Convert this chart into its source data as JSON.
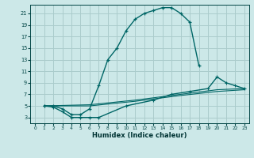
{
  "xlabel": "Humidex (Indice chaleur)",
  "bg_color": "#cce8e8",
  "grid_color": "#aacccc",
  "line_color": "#006666",
  "xlim": [
    -0.5,
    23.5
  ],
  "ylim": [
    2,
    22.5
  ],
  "xticks": [
    0,
    1,
    2,
    3,
    4,
    5,
    6,
    7,
    8,
    9,
    10,
    11,
    12,
    13,
    14,
    15,
    16,
    17,
    18,
    19,
    20,
    21,
    22,
    23
  ],
  "yticks": [
    3,
    5,
    7,
    9,
    11,
    13,
    15,
    17,
    19,
    21
  ],
  "line1_x": [
    1,
    2,
    3,
    4,
    5,
    6,
    7,
    8,
    9,
    10,
    11,
    12,
    13,
    14,
    15,
    16,
    17,
    18
  ],
  "line1_y": [
    5,
    5,
    4.5,
    3.5,
    3.5,
    4.5,
    8.5,
    13,
    15,
    18,
    20,
    21,
    21.5,
    22,
    22,
    21,
    19.5,
    12
  ],
  "line2_x": [
    1,
    2,
    3,
    4,
    5,
    6,
    7,
    10,
    13,
    15,
    17,
    19,
    20,
    21,
    22,
    23
  ],
  "line2_y": [
    5,
    4.8,
    4,
    3,
    3,
    3,
    3,
    5,
    6,
    7,
    7.5,
    8,
    10,
    9,
    8.5,
    8
  ],
  "line3_x": [
    1,
    6,
    11,
    16,
    20,
    23
  ],
  "line3_y": [
    5,
    5.2,
    6,
    7,
    7.8,
    8
  ],
  "line4_x": [
    1,
    6,
    11,
    16,
    20,
    23
  ],
  "line4_y": [
    5,
    5.0,
    5.8,
    6.8,
    7.5,
    7.8
  ]
}
